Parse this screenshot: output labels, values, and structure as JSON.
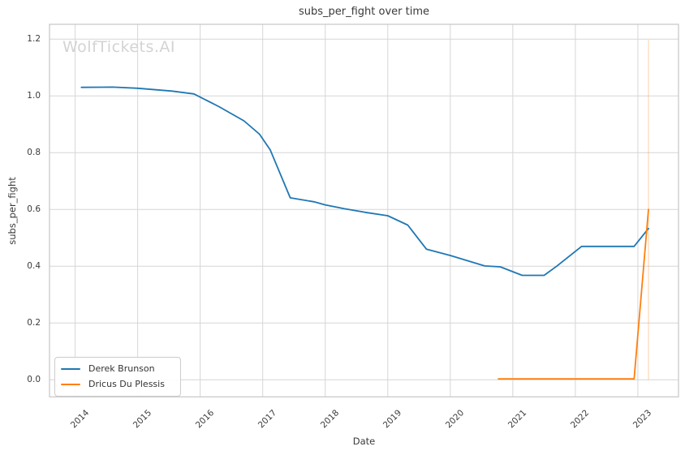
{
  "watermark": "WolfTickets.AI",
  "chart_data": {
    "type": "line",
    "title": "subs_per_fight over time",
    "xlabel": "Date",
    "ylabel": "subs_per_fight",
    "grid": true,
    "legend_position": "lower left",
    "x_ticks": [
      2014,
      2015,
      2016,
      2017,
      2018,
      2019,
      2020,
      2021,
      2022,
      2023
    ],
    "y_ticks": [
      0.0,
      0.2,
      0.4,
      0.6,
      0.8,
      1.0,
      1.2
    ],
    "xlim": [
      2013.59,
      2023.65
    ],
    "ylim": [
      -0.06,
      1.252
    ],
    "colors": {
      "grid": "#d6d6d6",
      "spine": "#c6c6c6",
      "text": "#3b3b3b"
    },
    "series": [
      {
        "name": "Derek Brunson",
        "color": "#1f77b4",
        "x": [
          2014.1,
          2014.6,
          2015.0,
          2015.55,
          2015.9,
          2016.3,
          2016.7,
          2016.95,
          2017.12,
          2017.44,
          2017.82,
          2018.0,
          2018.3,
          2018.64,
          2019.0,
          2019.32,
          2019.62,
          2020.0,
          2020.55,
          2020.8,
          2021.15,
          2021.5,
          2021.7,
          2022.1,
          2022.94,
          2023.17
        ],
        "y": [
          1.03,
          1.031,
          1.027,
          1.017,
          1.007,
          0.962,
          0.912,
          0.865,
          0.81,
          0.641,
          0.627,
          0.616,
          0.603,
          0.59,
          0.578,
          0.545,
          0.46,
          0.438,
          0.401,
          0.398,
          0.368,
          0.368,
          0.4,
          0.47,
          0.47,
          0.533
        ]
      },
      {
        "name": "Dricus Du Plessis",
        "color": "#ff7f0e",
        "x": [
          2020.77,
          2022.94,
          2023.17
        ],
        "y": [
          0.003,
          0.003,
          0.6
        ]
      }
    ],
    "event_line": {
      "x": 2023.17,
      "color": "#ff7f0e",
      "opacity": 0.3,
      "y_bottom": 0.0,
      "y_top": 1.197
    }
  }
}
